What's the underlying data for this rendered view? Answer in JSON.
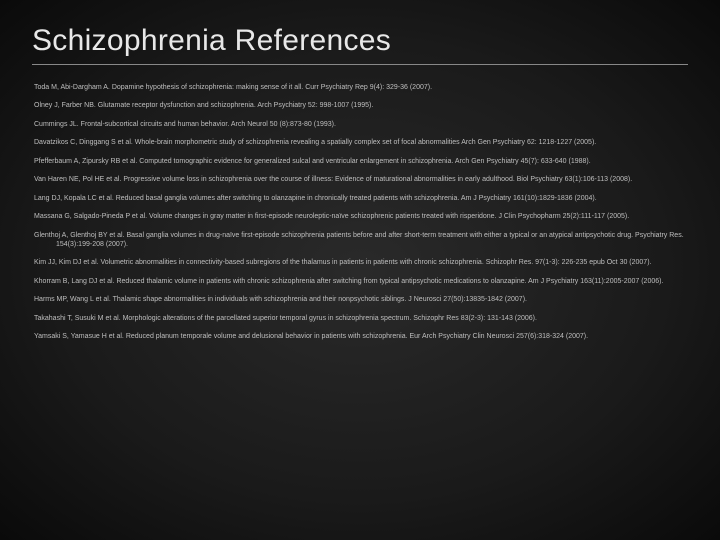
{
  "slide": {
    "title": "Schizophrenia References",
    "title_color": "#e8e8e8",
    "title_fontsize": 30,
    "underline_color": "#888888",
    "background_gradient": [
      "#2a2a2a",
      "#1a1a1a",
      "#0a0a0a"
    ],
    "ref_fontsize": 7,
    "ref_color": "#bfbfbf",
    "references": [
      "Toda M, Abi-Dargham A. Dopamine hypothesis of schizophrenia: making sense of it all. Curr Psychiatry Rep 9(4): 329-36 (2007).",
      "Olney J, Farber NB.  Glutamate receptor dysfunction and schizophrenia. Arch Psychiatry 52: 998-1007 (1995).",
      "Cummings JL. Frontal-subcortical circuits and human behavior. Arch Neurol 50 (8):873-80 (1993).",
      "Davatzikos C, Dinggang S et al. Whole-brain morphometric study of schizophrenia revealing a spatially complex set of focal abnormalities Arch Gen Psychiatry 62: 1218-1227 (2005).",
      "Pfefferbaum A, Zipursky RB et al. Computed tomographic evidence for generalized sulcal and ventricular enlargement in schizophrenia. Arch Gen Psychiatry 45(7): 633-640 (1988).",
      "Van Haren NE, Pol HE et al. Progressive volume loss in schizophrenia over the course of illness: Evidence of maturational abnormalities in early adulthood. Biol Psychiatry 63(1):106-113 (2008).",
      "Lang DJ, Kopala LC et al. Reduced basal ganglia volumes after switching to olanzapine in chronically treated patients with schizophrenia. Am J Psychiatry 161(10):1829-1836 (2004).",
      "Massana G, Salgado-Pineda P et al. Volume changes in gray matter in first-episode neuroleptic-naïve schizophrenic patients treated with risperidone. J Clin Psychopharm 25(2):111-117 (2005).",
      "Glenthoj A, Glenthoj BY et al. Basal ganglia volumes in drug-naïve first-episode schizophrenia patients before and after short-term treatment with either a typical or an atypical antipsychotic drug. Psychiatry Res. 154(3):199-208 (2007).",
      "Kim JJ, Kim DJ et al. Volumetric abnormalities in connectivity-based subregions of the thalamus in patients in patients with chronic schizophrenia. Schizophr Res. 97(1-3): 226-235 epub Oct 30 (2007).",
      "Khorram B, Lang DJ et al. Reduced thalamic volume in patients with chronic schizophrenia after switching from typical antipsychotic medications to olanzapine. Am J Psychiatry 163(11):2005-2007 (2006).",
      "Harms MP, Wang L et al. Thalamic shape abnormalities in individuals with schizophrenia and their nonpsychotic siblings. J Neurosci 27(50):13835-1842 (2007).",
      "Takahashi T, Susuki M et al. Morphologic alterations of the parcellated superior temporal gyrus in schizophrenia spectrum. Schizophr Res 83(2-3): 131-143 (2006).",
      "Yamsaki S, Yamasue H et al. Reduced planum temporale volume and delusional behavior in patients with schizophrenia. Eur Arch Psychiatry Clin Neurosci 257(6):318-324 (2007)."
    ]
  }
}
